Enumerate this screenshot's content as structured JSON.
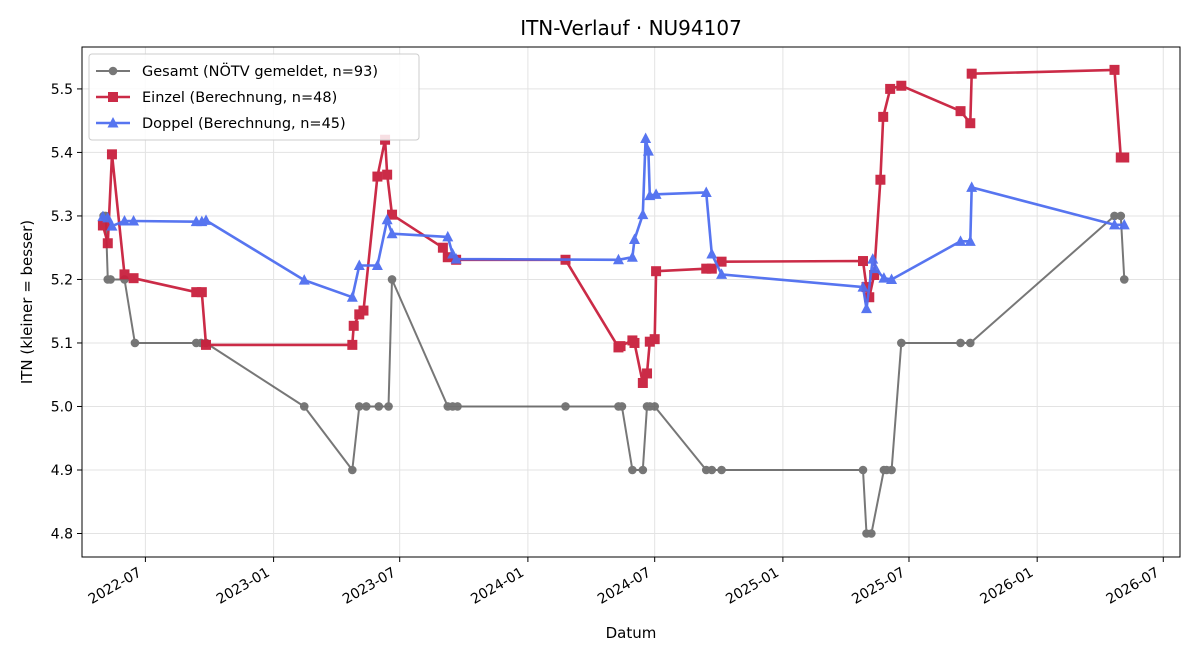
{
  "chart_data": {
    "type": "line",
    "title": "ITN-Verlauf · NU94107",
    "xlabel": "Datum",
    "ylabel": "ITN  (kleiner = besser)",
    "xlim": [
      "2022-04-01",
      "2026-07-25"
    ],
    "ylim": [
      4.763,
      5.566
    ],
    "x_ticks": [
      "2022-07-01",
      "2023-01-01",
      "2023-07-01",
      "2024-01-01",
      "2024-07-01",
      "2025-01-01",
      "2025-07-01",
      "2026-01-01",
      "2026-07-01"
    ],
    "x_tick_labels": [
      "2022-07",
      "2023-01",
      "2023-07",
      "2024-01",
      "2024-07",
      "2025-01",
      "2025-07",
      "2026-01",
      "2026-07"
    ],
    "y_ticks": [
      4.8,
      4.9,
      5.0,
      5.1,
      5.2,
      5.3,
      5.4,
      5.5
    ],
    "y_tick_labels": [
      "4.8",
      "4.9",
      "5.0",
      "5.1",
      "5.2",
      "5.3",
      "5.4",
      "5.5"
    ],
    "grid": true,
    "legend_position": "top-left",
    "series": [
      {
        "name": "Gesamt (NÖTV gemeldet, n=93)",
        "color": "#444444",
        "marker": "circle",
        "points": [
          [
            "2022-05-02",
            5.3
          ],
          [
            "2022-05-05",
            5.3
          ],
          [
            "2022-05-08",
            5.2
          ],
          [
            "2022-05-12",
            5.2
          ],
          [
            "2022-06-01",
            5.2
          ],
          [
            "2022-06-16",
            5.1
          ],
          [
            "2022-09-12",
            5.1
          ],
          [
            "2022-09-19",
            5.1
          ],
          [
            "2022-09-26",
            5.1
          ],
          [
            "2023-02-14",
            5.0
          ],
          [
            "2023-04-24",
            4.9
          ],
          [
            "2023-05-04",
            5.0
          ],
          [
            "2023-05-14",
            5.0
          ],
          [
            "2023-06-01",
            5.0
          ],
          [
            "2023-06-15",
            5.0
          ],
          [
            "2023-06-20",
            5.2
          ],
          [
            "2023-09-08",
            5.0
          ],
          [
            "2023-09-15",
            5.0
          ],
          [
            "2023-09-22",
            5.0
          ],
          [
            "2024-02-24",
            5.0
          ],
          [
            "2024-05-10",
            5.0
          ],
          [
            "2024-05-15",
            5.0
          ],
          [
            "2024-05-30",
            4.9
          ],
          [
            "2024-06-14",
            4.9
          ],
          [
            "2024-06-20",
            5.0
          ],
          [
            "2024-06-24",
            5.0
          ],
          [
            "2024-07-01",
            5.0
          ],
          [
            "2024-09-13",
            4.9
          ],
          [
            "2024-09-21",
            4.9
          ],
          [
            "2024-10-05",
            4.9
          ],
          [
            "2025-04-26",
            4.9
          ],
          [
            "2025-05-01",
            4.8
          ],
          [
            "2025-05-08",
            4.8
          ],
          [
            "2025-05-26",
            4.9
          ],
          [
            "2025-05-30",
            4.9
          ],
          [
            "2025-06-06",
            4.9
          ],
          [
            "2025-06-20",
            5.1
          ],
          [
            "2025-09-13",
            5.1
          ],
          [
            "2025-09-27",
            5.1
          ],
          [
            "2026-04-22",
            5.3
          ],
          [
            "2026-05-01",
            5.3
          ],
          [
            "2026-05-06",
            5.2
          ]
        ]
      },
      {
        "name": "Einzel (Berechnung, n=48)",
        "color": "#c9203e",
        "marker": "square",
        "points": [
          [
            "2022-05-01",
            5.285
          ],
          [
            "2022-05-08",
            5.257
          ],
          [
            "2022-05-14",
            5.397
          ],
          [
            "2022-06-01",
            5.208
          ],
          [
            "2022-06-14",
            5.202
          ],
          [
            "2022-09-12",
            5.18
          ],
          [
            "2022-09-20",
            5.18
          ],
          [
            "2022-09-26",
            5.097
          ],
          [
            "2023-04-24",
            5.097
          ],
          [
            "2023-04-26",
            5.127
          ],
          [
            "2023-05-04",
            5.145
          ],
          [
            "2023-05-10",
            5.151
          ],
          [
            "2023-05-30",
            5.362
          ],
          [
            "2023-06-10",
            5.42
          ],
          [
            "2023-06-13",
            5.365
          ],
          [
            "2023-06-20",
            5.302
          ],
          [
            "2023-09-01",
            5.25
          ],
          [
            "2023-09-08",
            5.235
          ],
          [
            "2023-09-20",
            5.231
          ],
          [
            "2024-02-24",
            5.231
          ],
          [
            "2024-05-10",
            5.093
          ],
          [
            "2024-05-13",
            5.095
          ],
          [
            "2024-05-30",
            5.104
          ],
          [
            "2024-06-02",
            5.1
          ],
          [
            "2024-06-14",
            5.037
          ],
          [
            "2024-06-20",
            5.052
          ],
          [
            "2024-06-24",
            5.102
          ],
          [
            "2024-07-01",
            5.106
          ],
          [
            "2024-07-03",
            5.213
          ],
          [
            "2024-09-13",
            5.217
          ],
          [
            "2024-09-21",
            5.217
          ],
          [
            "2024-10-05",
            5.228
          ],
          [
            "2025-04-26",
            5.229
          ],
          [
            "2025-05-01",
            5.188
          ],
          [
            "2025-05-05",
            5.172
          ],
          [
            "2025-05-12",
            5.207
          ],
          [
            "2025-05-21",
            5.357
          ],
          [
            "2025-05-25",
            5.456
          ],
          [
            "2025-06-04",
            5.5
          ],
          [
            "2025-06-20",
            5.505
          ],
          [
            "2025-09-13",
            5.465
          ],
          [
            "2025-09-27",
            5.446
          ],
          [
            "2025-09-29",
            5.524
          ],
          [
            "2026-04-22",
            5.53
          ],
          [
            "2026-05-01",
            5.392
          ],
          [
            "2026-05-06",
            5.392
          ]
        ]
      },
      {
        "name": "Doppel (Berechnung, n=45)",
        "color": "#4f6ef0",
        "marker": "triangle",
        "points": [
          [
            "2022-05-01",
            5.299
          ],
          [
            "2022-05-08",
            5.297
          ],
          [
            "2022-05-14",
            5.284
          ],
          [
            "2022-06-01",
            5.292
          ],
          [
            "2022-06-14",
            5.292
          ],
          [
            "2022-09-12",
            5.291
          ],
          [
            "2022-09-20",
            5.291
          ],
          [
            "2022-09-26",
            5.293
          ],
          [
            "2023-02-14",
            5.199
          ],
          [
            "2023-04-24",
            5.172
          ],
          [
            "2023-05-04",
            5.222
          ],
          [
            "2023-05-30",
            5.222
          ],
          [
            "2023-06-13",
            5.294
          ],
          [
            "2023-06-20",
            5.272
          ],
          [
            "2023-09-08",
            5.267
          ],
          [
            "2023-09-15",
            5.24
          ],
          [
            "2023-09-20",
            5.232
          ],
          [
            "2024-05-10",
            5.231
          ],
          [
            "2024-05-30",
            5.235
          ],
          [
            "2024-06-02",
            5.263
          ],
          [
            "2024-06-14",
            5.302
          ],
          [
            "2024-06-18",
            5.422
          ],
          [
            "2024-06-22",
            5.402
          ],
          [
            "2024-06-24",
            5.332
          ],
          [
            "2024-07-03",
            5.334
          ],
          [
            "2024-09-13",
            5.337
          ],
          [
            "2024-09-21",
            5.24
          ],
          [
            "2024-10-05",
            5.208
          ],
          [
            "2025-04-26",
            5.188
          ],
          [
            "2025-05-01",
            5.154
          ],
          [
            "2025-05-10",
            5.232
          ],
          [
            "2025-05-14",
            5.217
          ],
          [
            "2025-05-26",
            5.202
          ],
          [
            "2025-06-06",
            5.2
          ],
          [
            "2025-09-13",
            5.26
          ],
          [
            "2025-09-27",
            5.26
          ],
          [
            "2025-09-29",
            5.345
          ],
          [
            "2026-04-22",
            5.286
          ],
          [
            "2026-05-06",
            5.286
          ]
        ]
      }
    ]
  }
}
